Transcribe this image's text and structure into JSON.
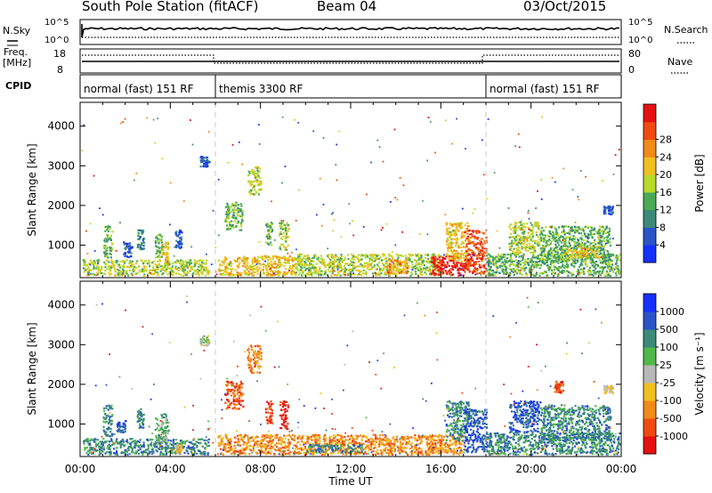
{
  "header": {
    "station": "South Pole Station (fitACF)",
    "beam": "Beam 04",
    "date": "03/Oct/2015"
  },
  "left_labels": {
    "nsky": "N.Sky",
    "freq": "Freq.",
    "freq_unit": "[MHz]",
    "cpid": "CPID"
  },
  "right_labels": {
    "nsearch": "N.Search",
    "nave": "Nave"
  },
  "noise_axis": {
    "top": "10^5",
    "bottom": "10^0"
  },
  "freq_axis": {
    "left_ticks": [
      "18",
      "8"
    ],
    "right_ticks": [
      "80",
      "0"
    ]
  },
  "cpid_segments": [
    {
      "label": "normal (fast) 151 RF",
      "start": 0,
      "end": 6
    },
    {
      "label": "themis 3300 RF",
      "start": 6,
      "end": 18
    },
    {
      "label": "normal (fast) 151 RF",
      "start": 18,
      "end": 24
    }
  ],
  "chart_data": [
    {
      "type": "heatmap",
      "name": "power",
      "ylabel": "Slant Range [km]",
      "xlabel": "",
      "xlim": [
        0,
        24
      ],
      "ylim": [
        180,
        4600
      ],
      "ytick_values": [
        1000,
        2000,
        3000,
        4000
      ],
      "ytick_labels": [
        "1000",
        "2000",
        "3000",
        "4000"
      ],
      "colorbar": {
        "label": "Power [dB]",
        "tick_labels": [
          "4",
          "8",
          "12",
          "16",
          "20",
          "24",
          "28"
        ],
        "colors": [
          "#1530ff",
          "#2a55c8",
          "#3c8a78",
          "#4aaa55",
          "#b8d82a",
          "#f0c020",
          "#f08a18",
          "#f04a10",
          "#e51010"
        ]
      },
      "patches": [
        {
          "t0": 0.1,
          "t1": 5.7,
          "r0": 250,
          "r1": 650,
          "c": 4
        },
        {
          "t0": 1.0,
          "t1": 1.4,
          "r0": 700,
          "r1": 1500,
          "c": 3
        },
        {
          "t0": 1.9,
          "t1": 2.3,
          "r0": 700,
          "r1": 1100,
          "c": 1
        },
        {
          "t0": 2.5,
          "t1": 2.8,
          "r0": 900,
          "r1": 1400,
          "c": 2
        },
        {
          "t0": 3.3,
          "t1": 3.6,
          "r0": 700,
          "r1": 1300,
          "c": 3
        },
        {
          "t0": 3.6,
          "t1": 3.9,
          "r0": 500,
          "r1": 1100,
          "c": 5
        },
        {
          "t0": 4.2,
          "t1": 4.5,
          "r0": 900,
          "r1": 1400,
          "c": 1
        },
        {
          "t0": 5.3,
          "t1": 5.7,
          "r0": 3000,
          "r1": 3250,
          "c": 1
        },
        {
          "t0": 6.1,
          "t1": 9.5,
          "r0": 250,
          "r1": 750,
          "c": 5
        },
        {
          "t0": 6.4,
          "t1": 7.2,
          "r0": 1400,
          "r1": 2100,
          "c": 3
        },
        {
          "t0": 7.4,
          "t1": 8.0,
          "r0": 2300,
          "r1": 3000,
          "c": 4
        },
        {
          "t0": 8.2,
          "t1": 8.5,
          "r0": 1000,
          "r1": 1600,
          "c": 3
        },
        {
          "t0": 8.8,
          "t1": 9.2,
          "r0": 900,
          "r1": 1600,
          "c": 4
        },
        {
          "t0": 9.5,
          "t1": 16.0,
          "r0": 250,
          "r1": 800,
          "c": 4
        },
        {
          "t0": 13.5,
          "t1": 14.5,
          "r0": 300,
          "r1": 650,
          "c": 6
        },
        {
          "t0": 15.5,
          "t1": 17.0,
          "r0": 250,
          "r1": 750,
          "c": 8
        },
        {
          "t0": 16.2,
          "t1": 17.2,
          "r0": 600,
          "r1": 1600,
          "c": 5
        },
        {
          "t0": 17.0,
          "t1": 18.0,
          "r0": 300,
          "r1": 1400,
          "c": 7
        },
        {
          "t0": 18.0,
          "t1": 23.9,
          "r0": 250,
          "r1": 800,
          "c": 3
        },
        {
          "t0": 19.0,
          "t1": 20.4,
          "r0": 800,
          "r1": 1600,
          "c": 4
        },
        {
          "t0": 20.4,
          "t1": 23.5,
          "r0": 600,
          "r1": 1500,
          "c": 3
        },
        {
          "t0": 21.5,
          "t1": 23.0,
          "r0": 700,
          "r1": 1000,
          "c": 5
        },
        {
          "t0": 23.2,
          "t1": 23.6,
          "r0": 1800,
          "r1": 2000,
          "c": 1
        }
      ]
    },
    {
      "type": "heatmap",
      "name": "velocity",
      "ylabel": "Slant Range [km]",
      "xlabel": "Time UT",
      "xlim": [
        0,
        24
      ],
      "ylim": [
        180,
        4600
      ],
      "xtick_values": [
        0,
        4,
        8,
        12,
        16,
        20,
        24
      ],
      "xtick_labels": [
        "00:00",
        "04:00",
        "08:00",
        "12:00",
        "16:00",
        "20:00",
        "00:00"
      ],
      "ytick_values": [
        1000,
        2000,
        3000,
        4000
      ],
      "ytick_labels": [
        "1000",
        "2000",
        "3000",
        "4000"
      ],
      "colorbar": {
        "label": "Velocity [m s⁻¹]",
        "tick_labels": [
          "1000",
          "500",
          "100",
          "25",
          "-25",
          "-100",
          "-500",
          "-1000"
        ],
        "colors": [
          "#1530ff",
          "#2a55c8",
          "#3c8a78",
          "#50b848",
          "#b8b8b8",
          "#f0c020",
          "#f08a18",
          "#f04a10",
          "#e51010"
        ]
      },
      "patches": [
        {
          "t0": 0.1,
          "t1": 5.7,
          "r0": 250,
          "r1": 650,
          "c": 2
        },
        {
          "t0": 1.0,
          "t1": 1.4,
          "r0": 700,
          "r1": 1500,
          "c": 2
        },
        {
          "t0": 1.6,
          "t1": 2.0,
          "r0": 800,
          "r1": 1100,
          "c": 1
        },
        {
          "t0": 2.5,
          "t1": 2.8,
          "r0": 900,
          "r1": 1400,
          "c": 2
        },
        {
          "t0": 3.3,
          "t1": 3.9,
          "r0": 500,
          "r1": 1300,
          "c": 3
        },
        {
          "t0": 4.2,
          "t1": 4.5,
          "r0": 300,
          "r1": 500,
          "c": 5
        },
        {
          "t0": 5.3,
          "t1": 5.7,
          "r0": 3000,
          "r1": 3250,
          "c": 4
        },
        {
          "t0": 6.1,
          "t1": 9.5,
          "r0": 250,
          "r1": 750,
          "c": 6
        },
        {
          "t0": 6.4,
          "t1": 7.2,
          "r0": 1400,
          "r1": 2100,
          "c": 7
        },
        {
          "t0": 7.4,
          "t1": 8.0,
          "r0": 2300,
          "r1": 3000,
          "c": 6
        },
        {
          "t0": 8.2,
          "t1": 8.5,
          "r0": 1000,
          "r1": 1600,
          "c": 7
        },
        {
          "t0": 8.8,
          "t1": 9.2,
          "r0": 900,
          "r1": 1600,
          "c": 8
        },
        {
          "t0": 9.5,
          "t1": 16.0,
          "r0": 250,
          "r1": 750,
          "c": 6
        },
        {
          "t0": 10.0,
          "t1": 12.5,
          "r0": 300,
          "r1": 500,
          "c": 2
        },
        {
          "t0": 15.5,
          "t1": 17.0,
          "r0": 250,
          "r1": 750,
          "c": 6
        },
        {
          "t0": 16.2,
          "t1": 17.2,
          "r0": 600,
          "r1": 1600,
          "c": 2
        },
        {
          "t0": 17.0,
          "t1": 18.0,
          "r0": 300,
          "r1": 1400,
          "c": 1
        },
        {
          "t0": 18.0,
          "t1": 23.9,
          "r0": 250,
          "r1": 800,
          "c": 2
        },
        {
          "t0": 19.0,
          "t1": 20.4,
          "r0": 800,
          "r1": 1600,
          "c": 1
        },
        {
          "t0": 20.4,
          "t1": 23.5,
          "r0": 600,
          "r1": 1500,
          "c": 2
        },
        {
          "t0": 21.0,
          "t1": 21.4,
          "r0": 1800,
          "r1": 2100,
          "c": 7
        },
        {
          "t0": 23.2,
          "t1": 23.6,
          "r0": 1800,
          "r1": 2000,
          "c": 5
        }
      ]
    }
  ]
}
